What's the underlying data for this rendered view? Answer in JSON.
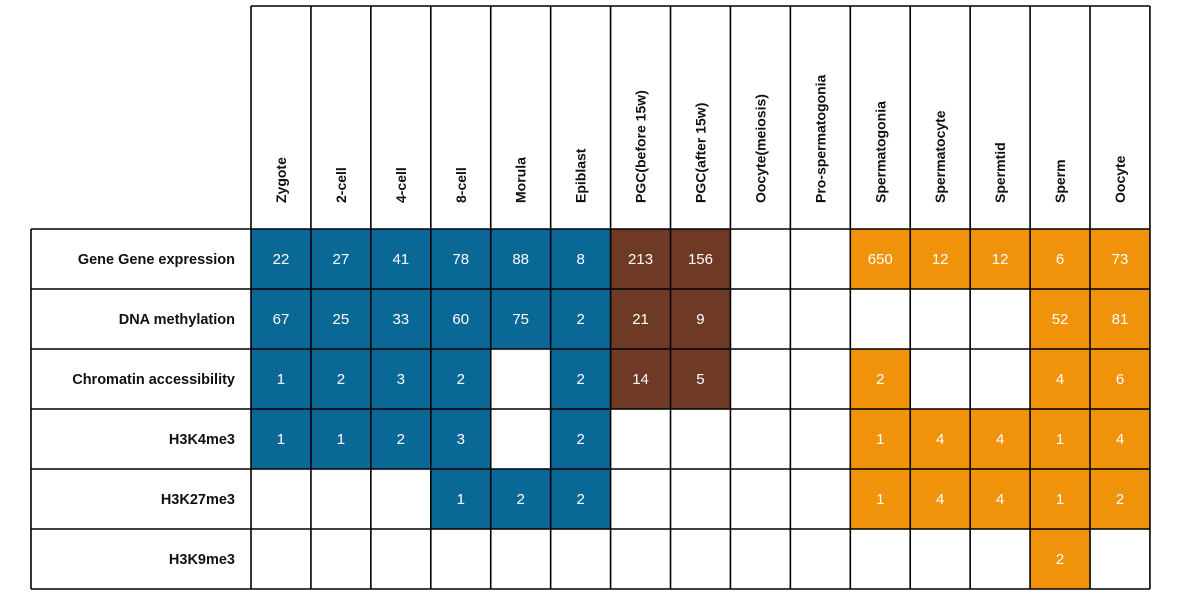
{
  "chart_data": {
    "type": "heatmap",
    "columns": [
      "Zygote",
      "2-cell",
      "4-cell",
      "8-cell",
      "Morula",
      "Epiblast",
      "PGC(before 15w)",
      "PGC(after 15w)",
      "Oocyte(meiosis)",
      "Pro-spermatogonia",
      "Spermatogonia",
      "Spermatocyte",
      "Spermtid",
      "Sperm",
      "Oocyte"
    ],
    "rows": [
      "Gene Gene expression",
      "DNA methylation",
      "Chromatin accessibility",
      "H3K4me3",
      "H3K27me3",
      "H3K9me3"
    ],
    "column_groups": [
      "embryo",
      "embryo",
      "embryo",
      "embryo",
      "embryo",
      "embryo",
      "pgc",
      "pgc",
      "none",
      "none",
      "germ",
      "germ",
      "germ",
      "germ",
      "germ"
    ],
    "colors": {
      "embryo": "#0a6896",
      "pgc": "#6e3a26",
      "germ": "#f0920a",
      "none": "#ffffff",
      "grid": "#000000"
    },
    "values": [
      [
        22,
        27,
        41,
        78,
        88,
        8,
        213,
        156,
        null,
        null,
        650,
        12,
        12,
        6,
        73
      ],
      [
        67,
        25,
        33,
        60,
        75,
        2,
        21,
        9,
        null,
        null,
        null,
        null,
        null,
        52,
        81
      ],
      [
        1,
        2,
        3,
        2,
        null,
        2,
        14,
        5,
        null,
        null,
        2,
        null,
        null,
        4,
        6
      ],
      [
        1,
        1,
        2,
        3,
        null,
        2,
        null,
        null,
        null,
        null,
        1,
        4,
        4,
        1,
        4
      ],
      [
        null,
        null,
        null,
        1,
        2,
        2,
        null,
        null,
        null,
        null,
        1,
        4,
        4,
        1,
        2
      ],
      [
        null,
        null,
        null,
        null,
        null,
        null,
        null,
        null,
        null,
        null,
        null,
        null,
        null,
        2,
        null
      ]
    ]
  }
}
